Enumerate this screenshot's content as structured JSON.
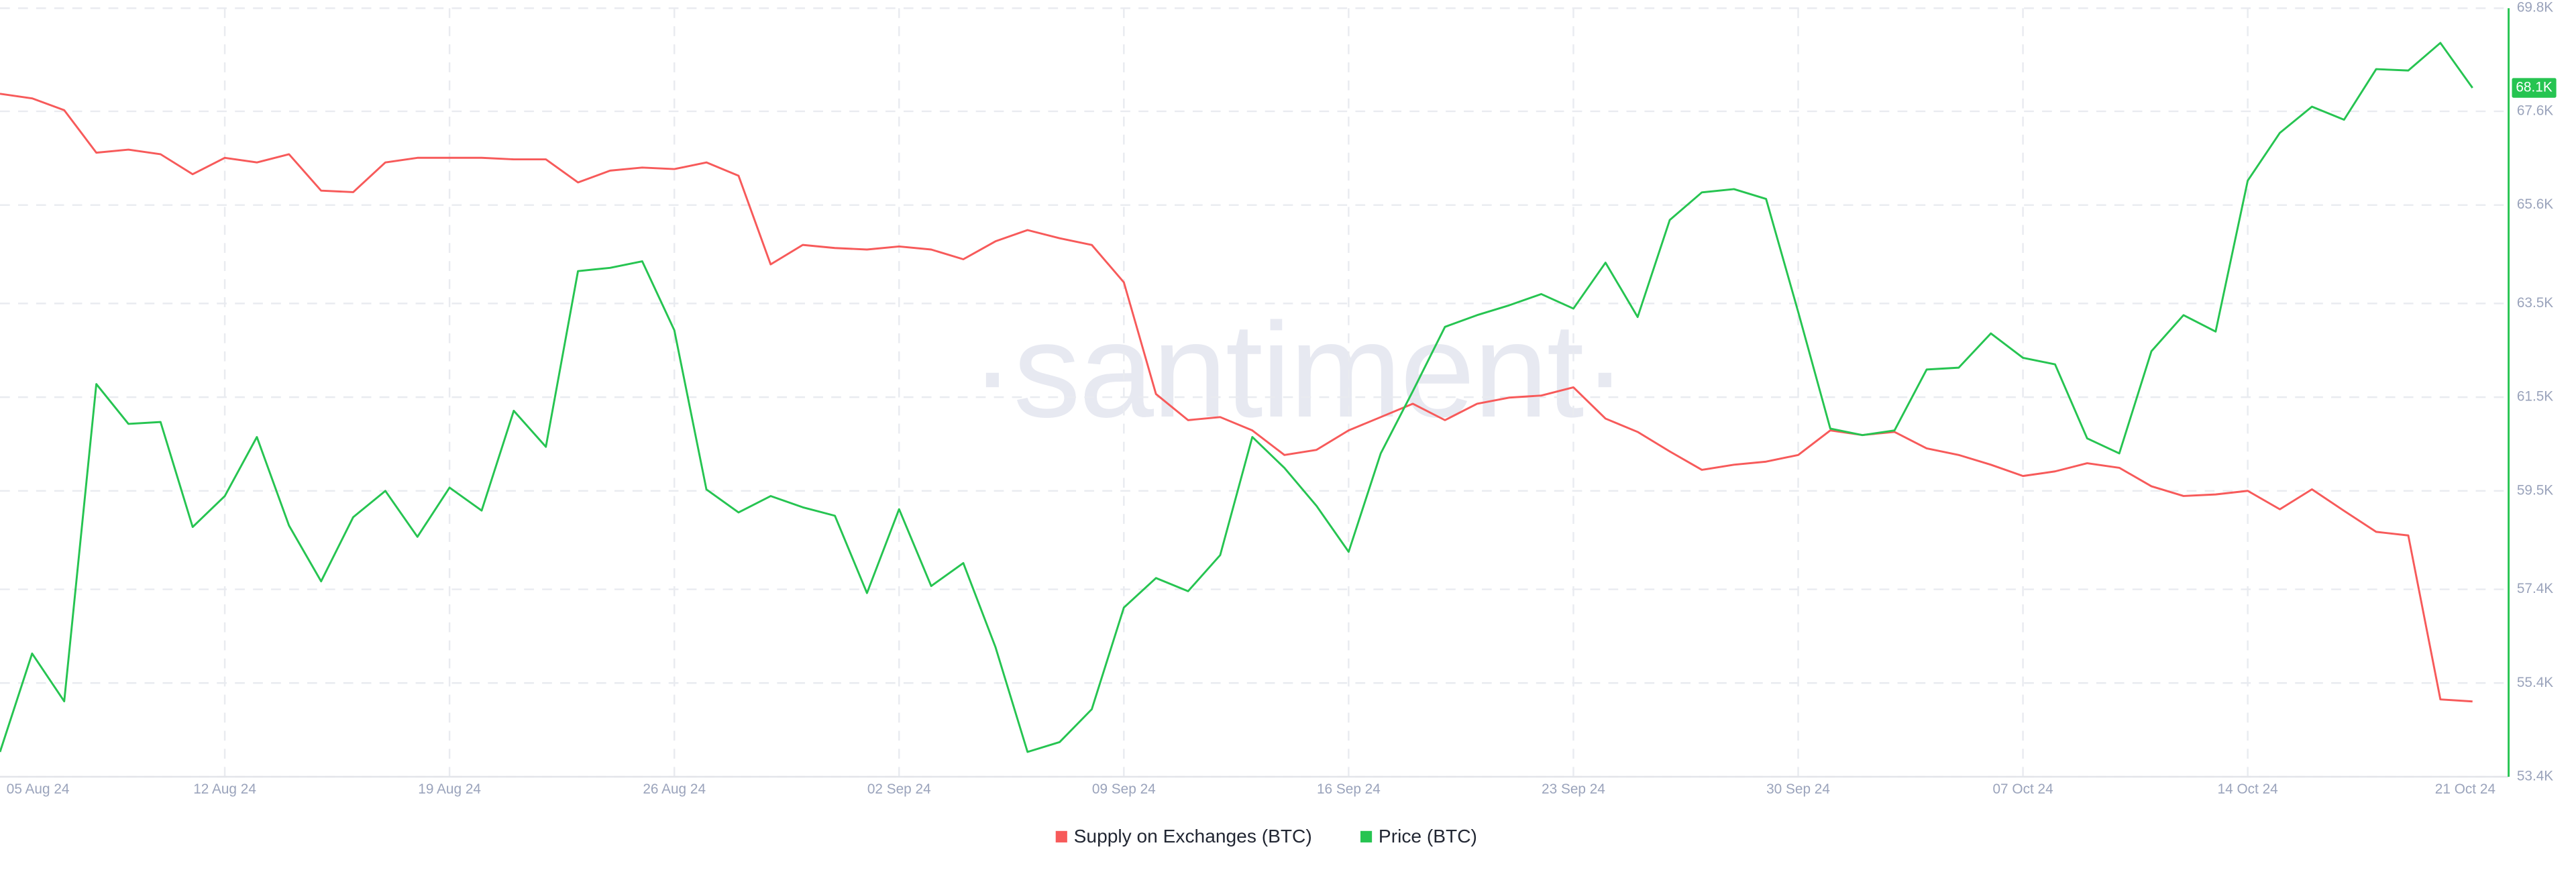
{
  "chart_data": {
    "type": "line",
    "watermark": "·santiment·",
    "categories": [
      "05 Aug 24",
      null,
      null,
      null,
      null,
      null,
      null,
      "12 Aug 24",
      null,
      null,
      null,
      null,
      null,
      null,
      "19 Aug 24",
      null,
      null,
      null,
      null,
      null,
      null,
      "26 Aug 24",
      null,
      null,
      null,
      null,
      null,
      null,
      "02 Sep 24",
      null,
      null,
      null,
      null,
      null,
      null,
      "09 Sep 24",
      null,
      null,
      null,
      null,
      null,
      null,
      "16 Sep 24",
      null,
      null,
      null,
      null,
      null,
      null,
      "23 Sep 24",
      null,
      null,
      null,
      null,
      null,
      null,
      "30 Sep 24",
      null,
      null,
      null,
      null,
      null,
      null,
      "07 Oct 24",
      null,
      null,
      null,
      null,
      null,
      null,
      "14 Oct 24",
      null,
      null,
      null,
      null,
      null,
      null,
      "21 Oct 24"
    ],
    "series": [
      {
        "name": "Supply on Exchanges (BTC)",
        "color": "#f75a5a",
        "axis": "y2",
        "values": [
          1933300,
          1932400,
          1930100,
          1921800,
          1922400,
          1921500,
          1917600,
          1920800,
          1919900,
          1921500,
          1914400,
          1914100,
          1919900,
          1920800,
          1920800,
          1920800,
          1920500,
          1920500,
          1916000,
          1918300,
          1918900,
          1918600,
          1919900,
          1917300,
          1900000,
          1903800,
          1903200,
          1902900,
          1903500,
          1902900,
          1901000,
          1904500,
          1906700,
          1905100,
          1903800,
          1896500,
          1874700,
          1869600,
          1870200,
          1867600,
          1862800,
          1863800,
          1867600,
          1870200,
          1872800,
          1869600,
          1872800,
          1874000,
          1874400,
          1876000,
          1869900,
          1867300,
          1863500,
          1859900,
          1860900,
          1861500,
          1862800,
          1867600,
          1866700,
          1867300,
          1864100,
          1862800,
          1860900,
          1858700,
          1859600,
          1861200,
          1860300,
          1856700,
          1854800,
          1855100,
          1855800,
          1852200,
          1856100,
          1851900,
          1847800,
          1847100,
          1815100,
          1814700
        ]
      },
      {
        "name": "Price (BTC)",
        "color": "#26c451",
        "axis": "y",
        "last_label": "68.1K",
        "values": [
          53930,
          56030,
          55010,
          61780,
          60930,
          60970,
          58730,
          59390,
          60650,
          58760,
          57570,
          58940,
          59500,
          58520,
          59570,
          59080,
          61210,
          60440,
          64190,
          64260,
          64400,
          62930,
          59530,
          59040,
          59390,
          59150,
          58970,
          57320,
          59110,
          57470,
          57960,
          56170,
          53930,
          54140,
          54840,
          57010,
          57640,
          57360,
          58130,
          60650,
          59990,
          59180,
          58200,
          60300,
          61630,
          63000,
          63250,
          63460,
          63700,
          63390,
          64370,
          63210,
          65280,
          65870,
          65940,
          65730,
          63320,
          60830,
          60690,
          60790,
          62090,
          62130,
          62860,
          62340,
          62200,
          60620,
          60300,
          62480,
          63250,
          62900,
          66120,
          67140,
          67700,
          67420,
          68500,
          68470,
          69060,
          68100
        ]
      }
    ],
    "ylim": [
      53400,
      69800
    ],
    "yticks": [
      {
        "value": 53400,
        "label": "53.4K"
      },
      {
        "value": 55400,
        "label": "55.4K"
      },
      {
        "value": 57400,
        "label": "57.4K"
      },
      {
        "value": 59500,
        "label": "59.5K"
      },
      {
        "value": 61500,
        "label": "61.5K"
      },
      {
        "value": 63500,
        "label": "63.5K"
      },
      {
        "value": 65600,
        "label": "65.6K"
      },
      {
        "value": 67600,
        "label": "67.6K"
      },
      {
        "value": 69800,
        "label": "69.8K"
      }
    ],
    "y2lim": [
      1800000,
      1950000
    ],
    "grid": true,
    "legend": "bottom"
  }
}
